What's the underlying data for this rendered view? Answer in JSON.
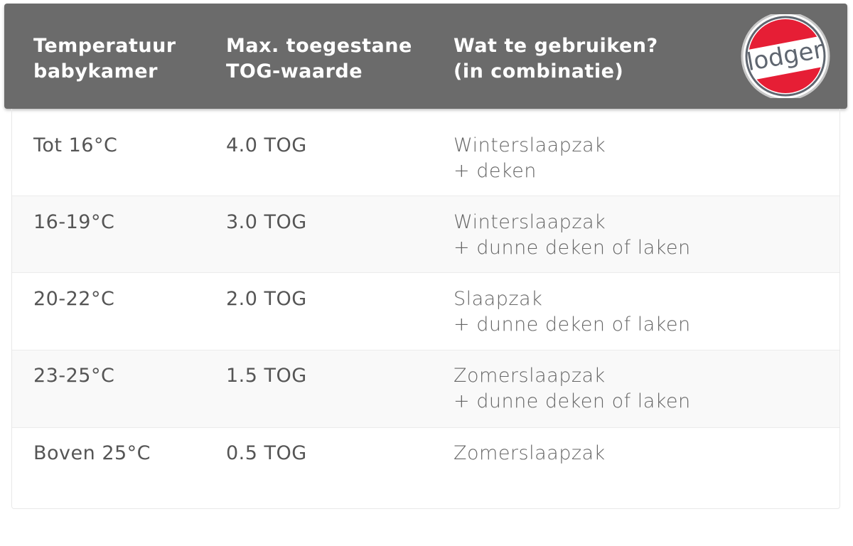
{
  "header": {
    "columns": [
      "Temperatuur\nbabykamer",
      "Max. toegestane\nTOG-waarde",
      "Wat te gebruiken?\n(in combinatie)"
    ],
    "col1_line1": "Temperatuur",
    "col1_line2": "babykamer",
    "col2_line1": "Max. toegestane",
    "col2_line2": "TOG-waarde",
    "col3_line1": "Wat te gebruiken?",
    "col3_line2": "(in combinatie)"
  },
  "logo": {
    "text": "lodger",
    "colors": {
      "red": "#e61e35",
      "grey": "#5f6670"
    }
  },
  "rows": [
    {
      "temp": "Tot 16°C",
      "tog": "4.0 TOG",
      "use1": "Winterslaapzak",
      "use2": "+ deken"
    },
    {
      "temp": "16-19°C",
      "tog": "3.0 TOG",
      "use1": "Winterslaapzak",
      "use2": "+ dunne deken of laken"
    },
    {
      "temp": "20-22°C",
      "tog": "2.0 TOG",
      "use1": "Slaapzak",
      "use2": "+ dunne deken of laken"
    },
    {
      "temp": "23-25°C",
      "tog": "1.5 TOG",
      "use1": "Zomerslaapzak",
      "use2": "+ dunne deken of laken"
    },
    {
      "temp": "Boven 25°C",
      "tog": "0.5 TOG",
      "use1": "Zomerslaapzak",
      "use2": ""
    }
  ]
}
